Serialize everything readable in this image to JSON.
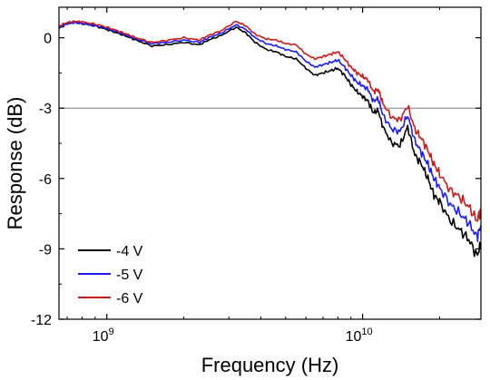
{
  "chart_data": {
    "type": "line",
    "xlabel": "Frequency (Hz)",
    "ylabel": "Response (dB)",
    "xscale": "log",
    "xlim": [
      650000000.0,
      29000000000.0
    ],
    "ylim": [
      -12,
      1.3
    ],
    "x_ticks": [
      {
        "value": 1000000000.0,
        "base": "10",
        "exp": "9"
      },
      {
        "value": 10000000000.0,
        "base": "10",
        "exp": "10"
      }
    ],
    "y_ticks": [
      0,
      -3,
      -6,
      -9,
      -12
    ],
    "reference_line": {
      "y": -3,
      "color": "#808080"
    },
    "legend_position": "bottom-left",
    "series": [
      {
        "name": "-4 V",
        "color": "#000000",
        "points": [
          [
            650000000.0,
            0.4
          ],
          [
            700000000.0,
            0.6
          ],
          [
            750000000.0,
            0.65
          ],
          [
            800000000.0,
            0.6
          ],
          [
            900000000.0,
            0.5
          ],
          [
            1000000000.0,
            0.35
          ],
          [
            1100000000.0,
            0.2
          ],
          [
            1200000000.0,
            0.05
          ],
          [
            1300000000.0,
            -0.1
          ],
          [
            1500000000.0,
            -0.35
          ],
          [
            1700000000.0,
            -0.3
          ],
          [
            2000000000.0,
            -0.2
          ],
          [
            2300000000.0,
            -0.3
          ],
          [
            2500000000.0,
            -0.1
          ],
          [
            2800000000.0,
            0.1
          ],
          [
            3200000000.0,
            0.45
          ],
          [
            3500000000.0,
            0.2
          ],
          [
            3800000000.0,
            -0.2
          ],
          [
            4200000000.0,
            -0.5
          ],
          [
            4600000000.0,
            -0.6
          ],
          [
            5000000000.0,
            -0.8
          ],
          [
            5500000000.0,
            -0.9
          ],
          [
            6000000000.0,
            -1.3
          ],
          [
            6500000000.0,
            -1.6
          ],
          [
            7000000000.0,
            -1.5
          ],
          [
            7500000000.0,
            -1.4
          ],
          [
            8000000000.0,
            -1.3
          ],
          [
            8500000000.0,
            -1.6
          ],
          [
            9000000000.0,
            -2.0
          ],
          [
            9500000000.0,
            -2.3
          ],
          [
            10000000000.0,
            -2.5
          ],
          [
            10500000000.0,
            -2.7
          ],
          [
            11000000000.0,
            -3.2
          ],
          [
            11500000000.0,
            -3.1
          ],
          [
            12000000000.0,
            -3.8
          ],
          [
            13000000000.0,
            -4.5
          ],
          [
            14000000000.0,
            -4.6
          ],
          [
            15000000000.0,
            -3.8
          ],
          [
            16000000000.0,
            -5.0
          ],
          [
            17000000000.0,
            -5.4
          ],
          [
            18000000000.0,
            -6.0
          ],
          [
            19000000000.0,
            -6.7
          ],
          [
            20000000000.0,
            -7.0
          ],
          [
            22000000000.0,
            -7.8
          ],
          [
            24000000000.0,
            -8.2
          ],
          [
            26000000000.0,
            -8.6
          ],
          [
            28000000000.0,
            -9.3
          ],
          [
            29000000000.0,
            -8.8
          ]
        ]
      },
      {
        "name": "-5 V",
        "color": "#1a1aff",
        "points": [
          [
            650000000.0,
            0.45
          ],
          [
            700000000.0,
            0.6
          ],
          [
            750000000.0,
            0.65
          ],
          [
            800000000.0,
            0.62
          ],
          [
            900000000.0,
            0.52
          ],
          [
            1000000000.0,
            0.4
          ],
          [
            1100000000.0,
            0.25
          ],
          [
            1200000000.0,
            0.1
          ],
          [
            1300000000.0,
            -0.05
          ],
          [
            1500000000.0,
            -0.25
          ],
          [
            1700000000.0,
            -0.2
          ],
          [
            2000000000.0,
            -0.1
          ],
          [
            2300000000.0,
            -0.2
          ],
          [
            2500000000.0,
            0.0
          ],
          [
            2800000000.0,
            0.2
          ],
          [
            3200000000.0,
            0.55
          ],
          [
            3500000000.0,
            0.35
          ],
          [
            3800000000.0,
            0.0
          ],
          [
            4200000000.0,
            -0.25
          ],
          [
            4600000000.0,
            -0.35
          ],
          [
            5000000000.0,
            -0.5
          ],
          [
            5500000000.0,
            -0.6
          ],
          [
            6000000000.0,
            -1.0
          ],
          [
            6500000000.0,
            -1.25
          ],
          [
            7000000000.0,
            -1.15
          ],
          [
            7500000000.0,
            -1.05
          ],
          [
            8000000000.0,
            -0.95
          ],
          [
            8500000000.0,
            -1.25
          ],
          [
            9000000000.0,
            -1.6
          ],
          [
            9500000000.0,
            -1.9
          ],
          [
            10000000000.0,
            -2.05
          ],
          [
            10500000000.0,
            -2.2
          ],
          [
            11000000000.0,
            -2.7
          ],
          [
            11500000000.0,
            -2.6
          ],
          [
            12000000000.0,
            -3.3
          ],
          [
            13000000000.0,
            -3.9
          ],
          [
            14000000000.0,
            -4.0
          ],
          [
            15000000000.0,
            -3.3
          ],
          [
            16000000000.0,
            -4.4
          ],
          [
            17000000000.0,
            -4.9
          ],
          [
            18000000000.0,
            -5.4
          ],
          [
            19000000000.0,
            -6.0
          ],
          [
            20000000000.0,
            -6.4
          ],
          [
            22000000000.0,
            -7.1
          ],
          [
            24000000000.0,
            -7.5
          ],
          [
            26000000000.0,
            -7.9
          ],
          [
            28000000000.0,
            -8.5
          ],
          [
            29000000000.0,
            -8.0
          ]
        ]
      },
      {
        "name": "-6 V",
        "color": "#cc1a1a",
        "points": [
          [
            650000000.0,
            0.5
          ],
          [
            700000000.0,
            0.65
          ],
          [
            750000000.0,
            0.7
          ],
          [
            800000000.0,
            0.68
          ],
          [
            900000000.0,
            0.58
          ],
          [
            1000000000.0,
            0.45
          ],
          [
            1100000000.0,
            0.3
          ],
          [
            1200000000.0,
            0.15
          ],
          [
            1300000000.0,
            0.0
          ],
          [
            1500000000.0,
            -0.2
          ],
          [
            1700000000.0,
            -0.12
          ],
          [
            2000000000.0,
            0.0
          ],
          [
            2300000000.0,
            -0.1
          ],
          [
            2500000000.0,
            0.1
          ],
          [
            2800000000.0,
            0.3
          ],
          [
            3200000000.0,
            0.7
          ],
          [
            3500000000.0,
            0.5
          ],
          [
            3800000000.0,
            0.15
          ],
          [
            4200000000.0,
            -0.05
          ],
          [
            4600000000.0,
            -0.1
          ],
          [
            5000000000.0,
            -0.25
          ],
          [
            5500000000.0,
            -0.3
          ],
          [
            6000000000.0,
            -0.7
          ],
          [
            6500000000.0,
            -0.9
          ],
          [
            7000000000.0,
            -0.8
          ],
          [
            7500000000.0,
            -0.7
          ],
          [
            8000000000.0,
            -0.6
          ],
          [
            8500000000.0,
            -0.9
          ],
          [
            9000000000.0,
            -1.25
          ],
          [
            9500000000.0,
            -1.5
          ],
          [
            10000000000.0,
            -1.65
          ],
          [
            10500000000.0,
            -1.8
          ],
          [
            11000000000.0,
            -2.3
          ],
          [
            11500000000.0,
            -2.2
          ],
          [
            12000000000.0,
            -2.8
          ],
          [
            13000000000.0,
            -3.4
          ],
          [
            14000000000.0,
            -3.5
          ],
          [
            15000000000.0,
            -2.9
          ],
          [
            16000000000.0,
            -3.9
          ],
          [
            17000000000.0,
            -4.3
          ],
          [
            18000000000.0,
            -4.8
          ],
          [
            19000000000.0,
            -5.4
          ],
          [
            20000000000.0,
            -5.8
          ],
          [
            22000000000.0,
            -6.5
          ],
          [
            24000000000.0,
            -6.8
          ],
          [
            26000000000.0,
            -7.2
          ],
          [
            28000000000.0,
            -7.8
          ],
          [
            29000000000.0,
            -7.3
          ]
        ]
      }
    ]
  }
}
